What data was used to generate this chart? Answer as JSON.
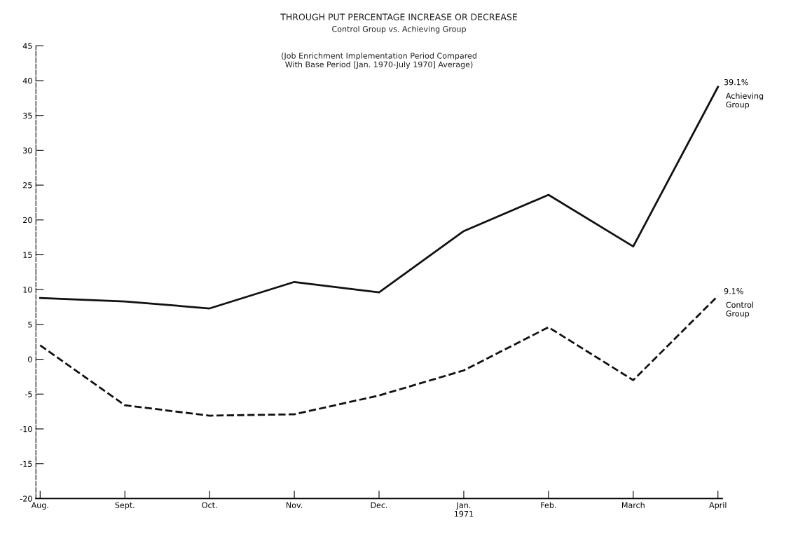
{
  "chart_data": {
    "type": "line",
    "title": "THROUGH PUT PERCENTAGE INCREASE OR DECREASE",
    "subtitle": "Control Group vs. Achieving Group",
    "annotations": [
      "(Job Enrichment Implementation Period Compared\nWith Base Period [Jan. 1970-July 1970] Average)"
    ],
    "categories": [
      "Aug.",
      "Sept.",
      "Oct.",
      "Nov.",
      "Dec.",
      "Jan.\n1971",
      "Feb.",
      "March",
      "April"
    ],
    "series": [
      {
        "name": "Achieving\nGroup",
        "color": "#111111",
        "line_style": "solid",
        "values": [
          8.8,
          8.3,
          7.3,
          11.1,
          9.6,
          18.4,
          23.6,
          16.2,
          39.1
        ],
        "value_labels": [
          null,
          null,
          null,
          null,
          null,
          null,
          null,
          null,
          "39.1%"
        ]
      },
      {
        "name": "Control\nGroup",
        "color": "#111111",
        "line_style": "dashed",
        "values": [
          2.0,
          -6.6,
          -8.1,
          -7.9,
          -5.2,
          -1.6,
          4.6,
          -3.0,
          9.1
        ],
        "value_labels": [
          null,
          null,
          null,
          null,
          null,
          null,
          null,
          null,
          "9.1%"
        ]
      }
    ],
    "ylim": [
      -20,
      45
    ],
    "yticks": [
      {
        "value": -20,
        "label": "-20"
      },
      {
        "value": -15,
        "label": "-15"
      },
      {
        "value": -10,
        "label": "-10"
      },
      {
        "value": -5,
        "label": "-5"
      },
      0,
      5,
      10,
      15,
      20,
      25,
      30,
      35,
      40,
      45
    ],
    "grid": false,
    "legend": false,
    "marker": "none"
  }
}
